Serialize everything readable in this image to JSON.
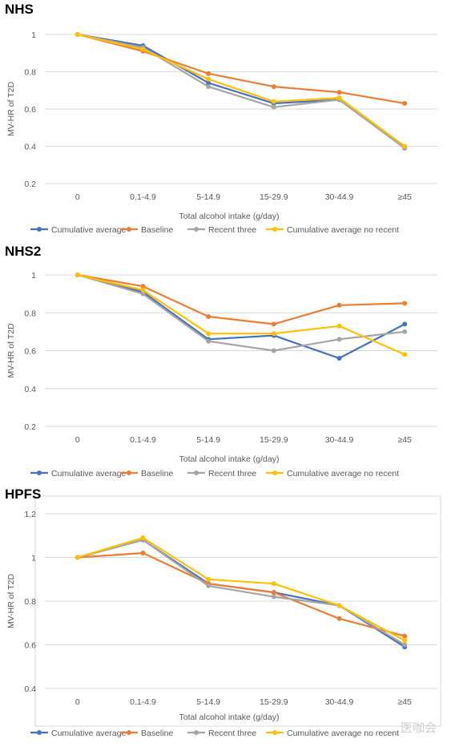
{
  "colors": {
    "cumulative_average": "#4472C4",
    "baseline": "#ED7D31",
    "recent_three": "#A5A5A5",
    "cumulative_average_no_recent": "#FFC000",
    "grid": "#d9d9d9",
    "axis_text": "#595959"
  },
  "watermark": "医咖会",
  "chart_data": [
    {
      "type": "line",
      "title": "NHS",
      "xlabel": "Total alcohol intake (g/day)",
      "ylabel": "MV-HR of T2D",
      "categories": [
        "0",
        "0.1-4.9",
        "5-14.9",
        "15-29.9",
        "30-44.9",
        "≥45"
      ],
      "ylim": [
        0.2,
        1.0
      ],
      "yticks": [
        "0.2",
        "0.4",
        "0.6",
        "0.8",
        "1"
      ],
      "grid": true,
      "legend_position": "bottom",
      "series": [
        {
          "name": "Cumulative average",
          "color_key": "cumulative_average",
          "values": [
            1.0,
            0.94,
            0.74,
            0.63,
            0.65,
            0.39
          ]
        },
        {
          "name": "Baseline",
          "color_key": "baseline",
          "values": [
            1.0,
            0.91,
            0.79,
            0.72,
            0.69,
            0.63
          ]
        },
        {
          "name": "Recent three",
          "color_key": "recent_three",
          "values": [
            1.0,
            0.93,
            0.72,
            0.61,
            0.65,
            0.39
          ]
        },
        {
          "name": "Cumulative average no recent",
          "color_key": "cumulative_average_no_recent",
          "values": [
            1.0,
            0.92,
            0.76,
            0.64,
            0.66,
            0.4
          ]
        }
      ]
    },
    {
      "type": "line",
      "title": "NHS2",
      "xlabel": "Total alcohol intake (g/day)",
      "ylabel": "MV-HR of T2D",
      "categories": [
        "0",
        "0.1-4.9",
        "5-14.9",
        "15-29.9",
        "30-44.9",
        "≥45"
      ],
      "ylim": [
        0.2,
        1.0
      ],
      "yticks": [
        "0.2",
        "0.4",
        "0.6",
        "0.8",
        "1"
      ],
      "grid": true,
      "legend_position": "bottom",
      "series": [
        {
          "name": "Cumulative average",
          "color_key": "cumulative_average",
          "values": [
            1.0,
            0.91,
            0.66,
            0.68,
            0.56,
            0.74
          ]
        },
        {
          "name": "Baseline",
          "color_key": "baseline",
          "values": [
            1.0,
            0.94,
            0.78,
            0.74,
            0.84,
            0.85
          ]
        },
        {
          "name": "Recent three",
          "color_key": "recent_three",
          "values": [
            1.0,
            0.9,
            0.65,
            0.6,
            0.66,
            0.7
          ]
        },
        {
          "name": "Cumulative average no recent",
          "color_key": "cumulative_average_no_recent",
          "values": [
            1.0,
            0.92,
            0.69,
            0.69,
            0.73,
            0.58
          ]
        }
      ]
    },
    {
      "type": "line",
      "title": "HPFS",
      "xlabel": "Total alcohol intake (g/day)",
      "ylabel": "MV-HR of T2D",
      "categories": [
        "0",
        "0.1-4.9",
        "5-14.9",
        "15-29.9",
        "30-44.9",
        "≥45"
      ],
      "ylim": [
        0.4,
        1.2
      ],
      "yticks": [
        "0.4",
        "0.6",
        "0.8",
        "1",
        "1.2"
      ],
      "grid": true,
      "legend_position": "bottom",
      "series": [
        {
          "name": "Cumulative average",
          "color_key": "cumulative_average",
          "values": [
            1.0,
            1.08,
            0.88,
            0.84,
            0.78,
            0.59
          ]
        },
        {
          "name": "Baseline",
          "color_key": "baseline",
          "values": [
            1.0,
            1.02,
            0.88,
            0.84,
            0.72,
            0.64
          ]
        },
        {
          "name": "Recent three",
          "color_key": "recent_three",
          "values": [
            1.0,
            1.08,
            0.87,
            0.82,
            0.78,
            0.6
          ]
        },
        {
          "name": "Cumulative average no recent",
          "color_key": "cumulative_average_no_recent",
          "values": [
            1.0,
            1.09,
            0.9,
            0.88,
            0.78,
            0.62
          ]
        }
      ]
    }
  ]
}
